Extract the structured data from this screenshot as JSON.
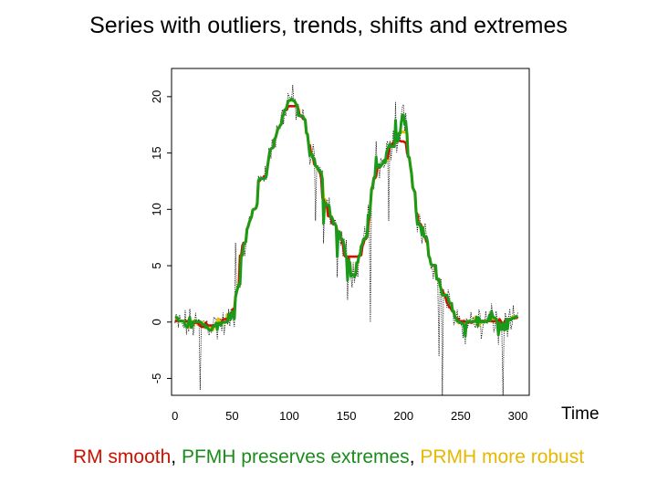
{
  "slide": {
    "title": "Series with outliers, trends, shifts and extremes",
    "caption": {
      "part1": "RM smooth",
      "sep1": ", ",
      "part2": "PFMH preserves extremes",
      "sep2": ", ",
      "part3": "PRMH more robust"
    }
  },
  "colors": {
    "rm": "#cc1100",
    "pfmh": "#1a9a1a",
    "prmh": "#e8c000",
    "data": "#000000"
  },
  "chart_data": {
    "type": "line",
    "title": "",
    "xlabel": "Time",
    "ylabel": "",
    "xlim": [
      -3,
      310
    ],
    "ylim": [
      -6.5,
      22.5
    ],
    "xticks": [
      0,
      50,
      100,
      150,
      200,
      250,
      300
    ],
    "yticks": [
      -5,
      0,
      5,
      10,
      15,
      20
    ],
    "underlying_level": {
      "x": [
        0,
        45,
        52,
        60,
        75,
        85,
        95,
        100,
        110,
        120,
        130,
        140,
        150,
        155,
        160,
        165,
        175,
        185,
        195,
        200,
        210,
        215,
        220,
        228,
        235,
        245,
        252,
        260,
        270,
        280,
        290,
        298
      ],
      "y": [
        -0.2,
        -0.2,
        0.8,
        6.5,
        12.5,
        15.5,
        18.5,
        20.0,
        18.5,
        15.0,
        12.0,
        8.5,
        6.0,
        4.5,
        4.5,
        7.0,
        13.0,
        15.5,
        16.5,
        19.0,
        10.5,
        8.5,
        7.0,
        4.5,
        2.5,
        0.8,
        0.0,
        0.2,
        -0.1,
        0.3,
        0.0,
        -0.2
      ]
    },
    "outliers": [
      {
        "x": 22,
        "y": -6
      },
      {
        "x": 37,
        "y": -1.5
      },
      {
        "x": 53,
        "y": 7
      },
      {
        "x": 118,
        "y": 14
      },
      {
        "x": 123,
        "y": 9
      },
      {
        "x": 130,
        "y": 7
      },
      {
        "x": 142,
        "y": 4
      },
      {
        "x": 151,
        "y": 2
      },
      {
        "x": 160,
        "y": 4
      },
      {
        "x": 171,
        "y": 0
      },
      {
        "x": 176,
        "y": 16
      },
      {
        "x": 187,
        "y": 9
      },
      {
        "x": 193,
        "y": 19.5
      },
      {
        "x": 212,
        "y": 8
      },
      {
        "x": 216,
        "y": 7
      },
      {
        "x": 231,
        "y": -3
      },
      {
        "x": 234,
        "y": -7
      },
      {
        "x": 240,
        "y": 2.5
      },
      {
        "x": 254,
        "y": -2
      },
      {
        "x": 268,
        "y": -1.5
      },
      {
        "x": 283,
        "y": -2
      },
      {
        "x": 287,
        "y": -7
      }
    ],
    "series": [
      {
        "key": "data",
        "color": "#000000"
      },
      {
        "key": "prmh",
        "color": "#e8c000"
      },
      {
        "key": "rm",
        "color": "#cc1100"
      },
      {
        "key": "pfmh",
        "color": "#1a9a1a"
      }
    ]
  }
}
